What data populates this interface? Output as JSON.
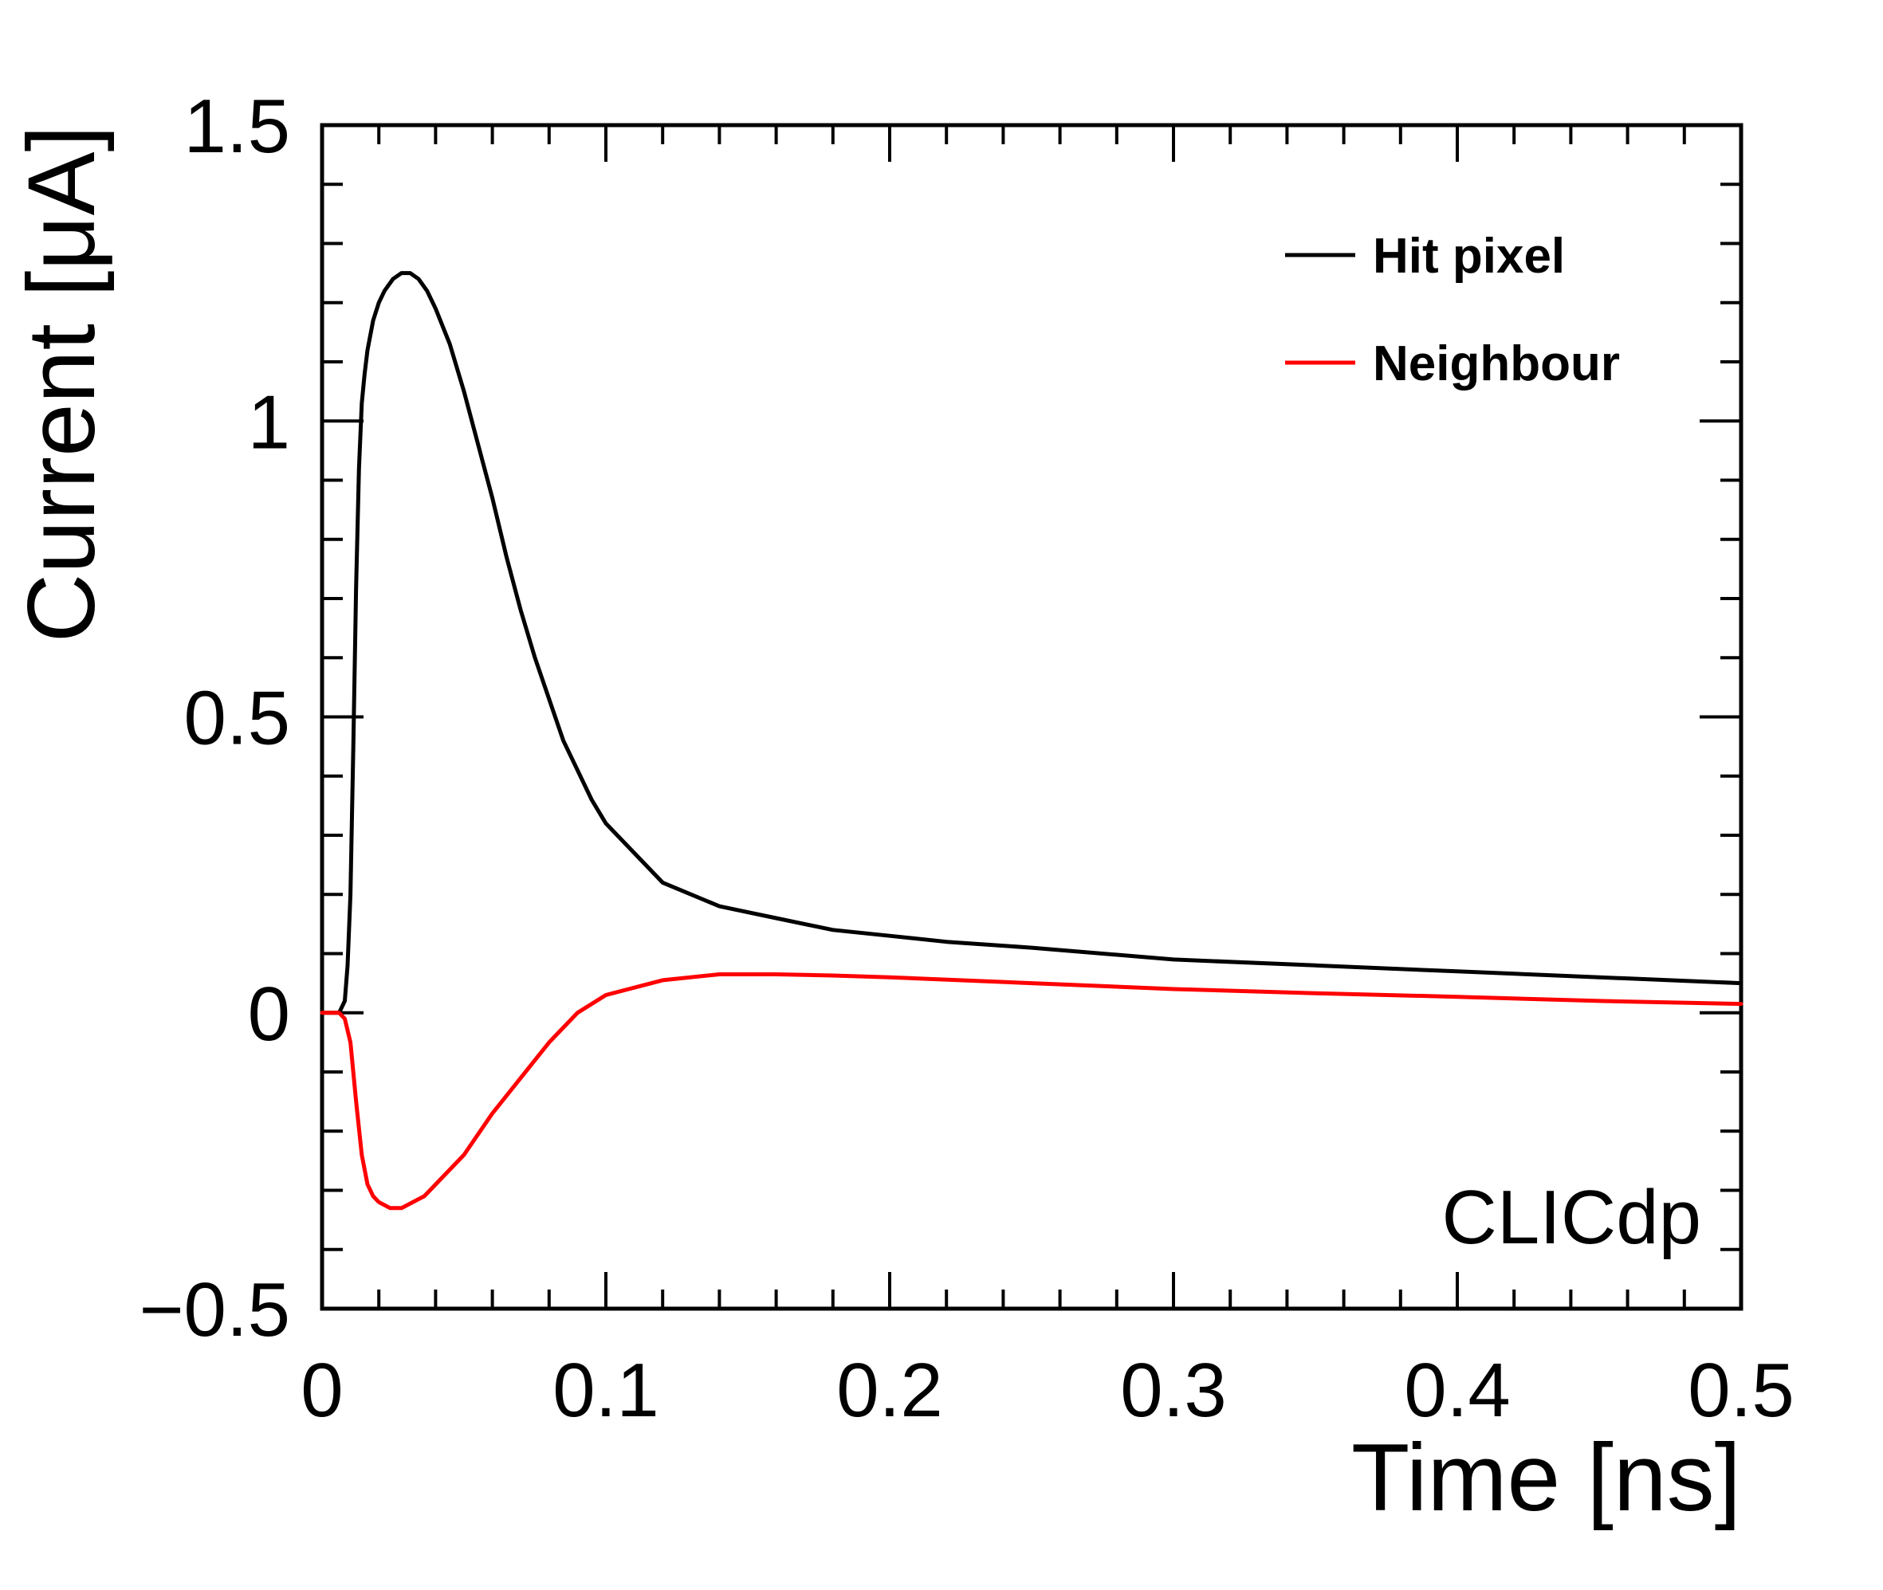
{
  "chart_data": {
    "type": "line",
    "title": "",
    "xlabel": "Time [ns]",
    "ylabel": "Current [μA]",
    "xlim": [
      0,
      0.5
    ],
    "ylim": [
      -0.5,
      1.5
    ],
    "x_ticks": [
      0,
      0.1,
      0.2,
      0.3,
      0.4,
      0.5
    ],
    "x_tick_labels": [
      "0",
      "0.1",
      "0.2",
      "0.3",
      "0.4",
      "0.5"
    ],
    "y_ticks": [
      -0.5,
      0,
      0.5,
      1,
      1.5
    ],
    "y_tick_labels": [
      "−0.5",
      "0",
      "0.5",
      "1",
      "1.5"
    ],
    "legend_position": "top-right",
    "watermark": "CLICdp",
    "series": [
      {
        "name": "Hit pixel",
        "color": "#000000",
        "x": [
          0,
          0.006,
          0.008,
          0.009,
          0.01,
          0.011,
          0.012,
          0.013,
          0.014,
          0.015,
          0.016,
          0.018,
          0.02,
          0.022,
          0.025,
          0.028,
          0.031,
          0.034,
          0.037,
          0.04,
          0.045,
          0.05,
          0.055,
          0.06,
          0.065,
          0.07,
          0.075,
          0.08,
          0.085,
          0.09,
          0.095,
          0.1,
          0.12,
          0.14,
          0.16,
          0.18,
          0.2,
          0.22,
          0.25,
          0.3,
          0.35,
          0.4,
          0.45,
          0.5
        ],
        "y": [
          0,
          0.0,
          0.02,
          0.08,
          0.2,
          0.45,
          0.72,
          0.92,
          1.03,
          1.08,
          1.12,
          1.17,
          1.2,
          1.22,
          1.24,
          1.25,
          1.25,
          1.24,
          1.22,
          1.19,
          1.13,
          1.05,
          0.96,
          0.87,
          0.77,
          0.68,
          0.6,
          0.53,
          0.46,
          0.41,
          0.36,
          0.32,
          0.22,
          0.18,
          0.16,
          0.14,
          0.13,
          0.12,
          0.11,
          0.09,
          0.08,
          0.07,
          0.06,
          0.05
        ]
      },
      {
        "name": "Neighbour",
        "color": "#ff0000",
        "x": [
          0,
          0.006,
          0.008,
          0.01,
          0.012,
          0.014,
          0.016,
          0.018,
          0.02,
          0.024,
          0.028,
          0.032,
          0.036,
          0.04,
          0.05,
          0.06,
          0.07,
          0.08,
          0.09,
          0.1,
          0.12,
          0.14,
          0.16,
          0.18,
          0.2,
          0.25,
          0.3,
          0.35,
          0.4,
          0.45,
          0.5
        ],
        "y": [
          0,
          0.0,
          -0.01,
          -0.05,
          -0.15,
          -0.24,
          -0.29,
          -0.31,
          -0.32,
          -0.33,
          -0.33,
          -0.32,
          -0.31,
          -0.29,
          -0.24,
          -0.17,
          -0.11,
          -0.05,
          0.0,
          0.03,
          0.055,
          0.065,
          0.065,
          0.063,
          0.06,
          0.05,
          0.04,
          0.033,
          0.027,
          0.02,
          0.015
        ]
      }
    ]
  }
}
